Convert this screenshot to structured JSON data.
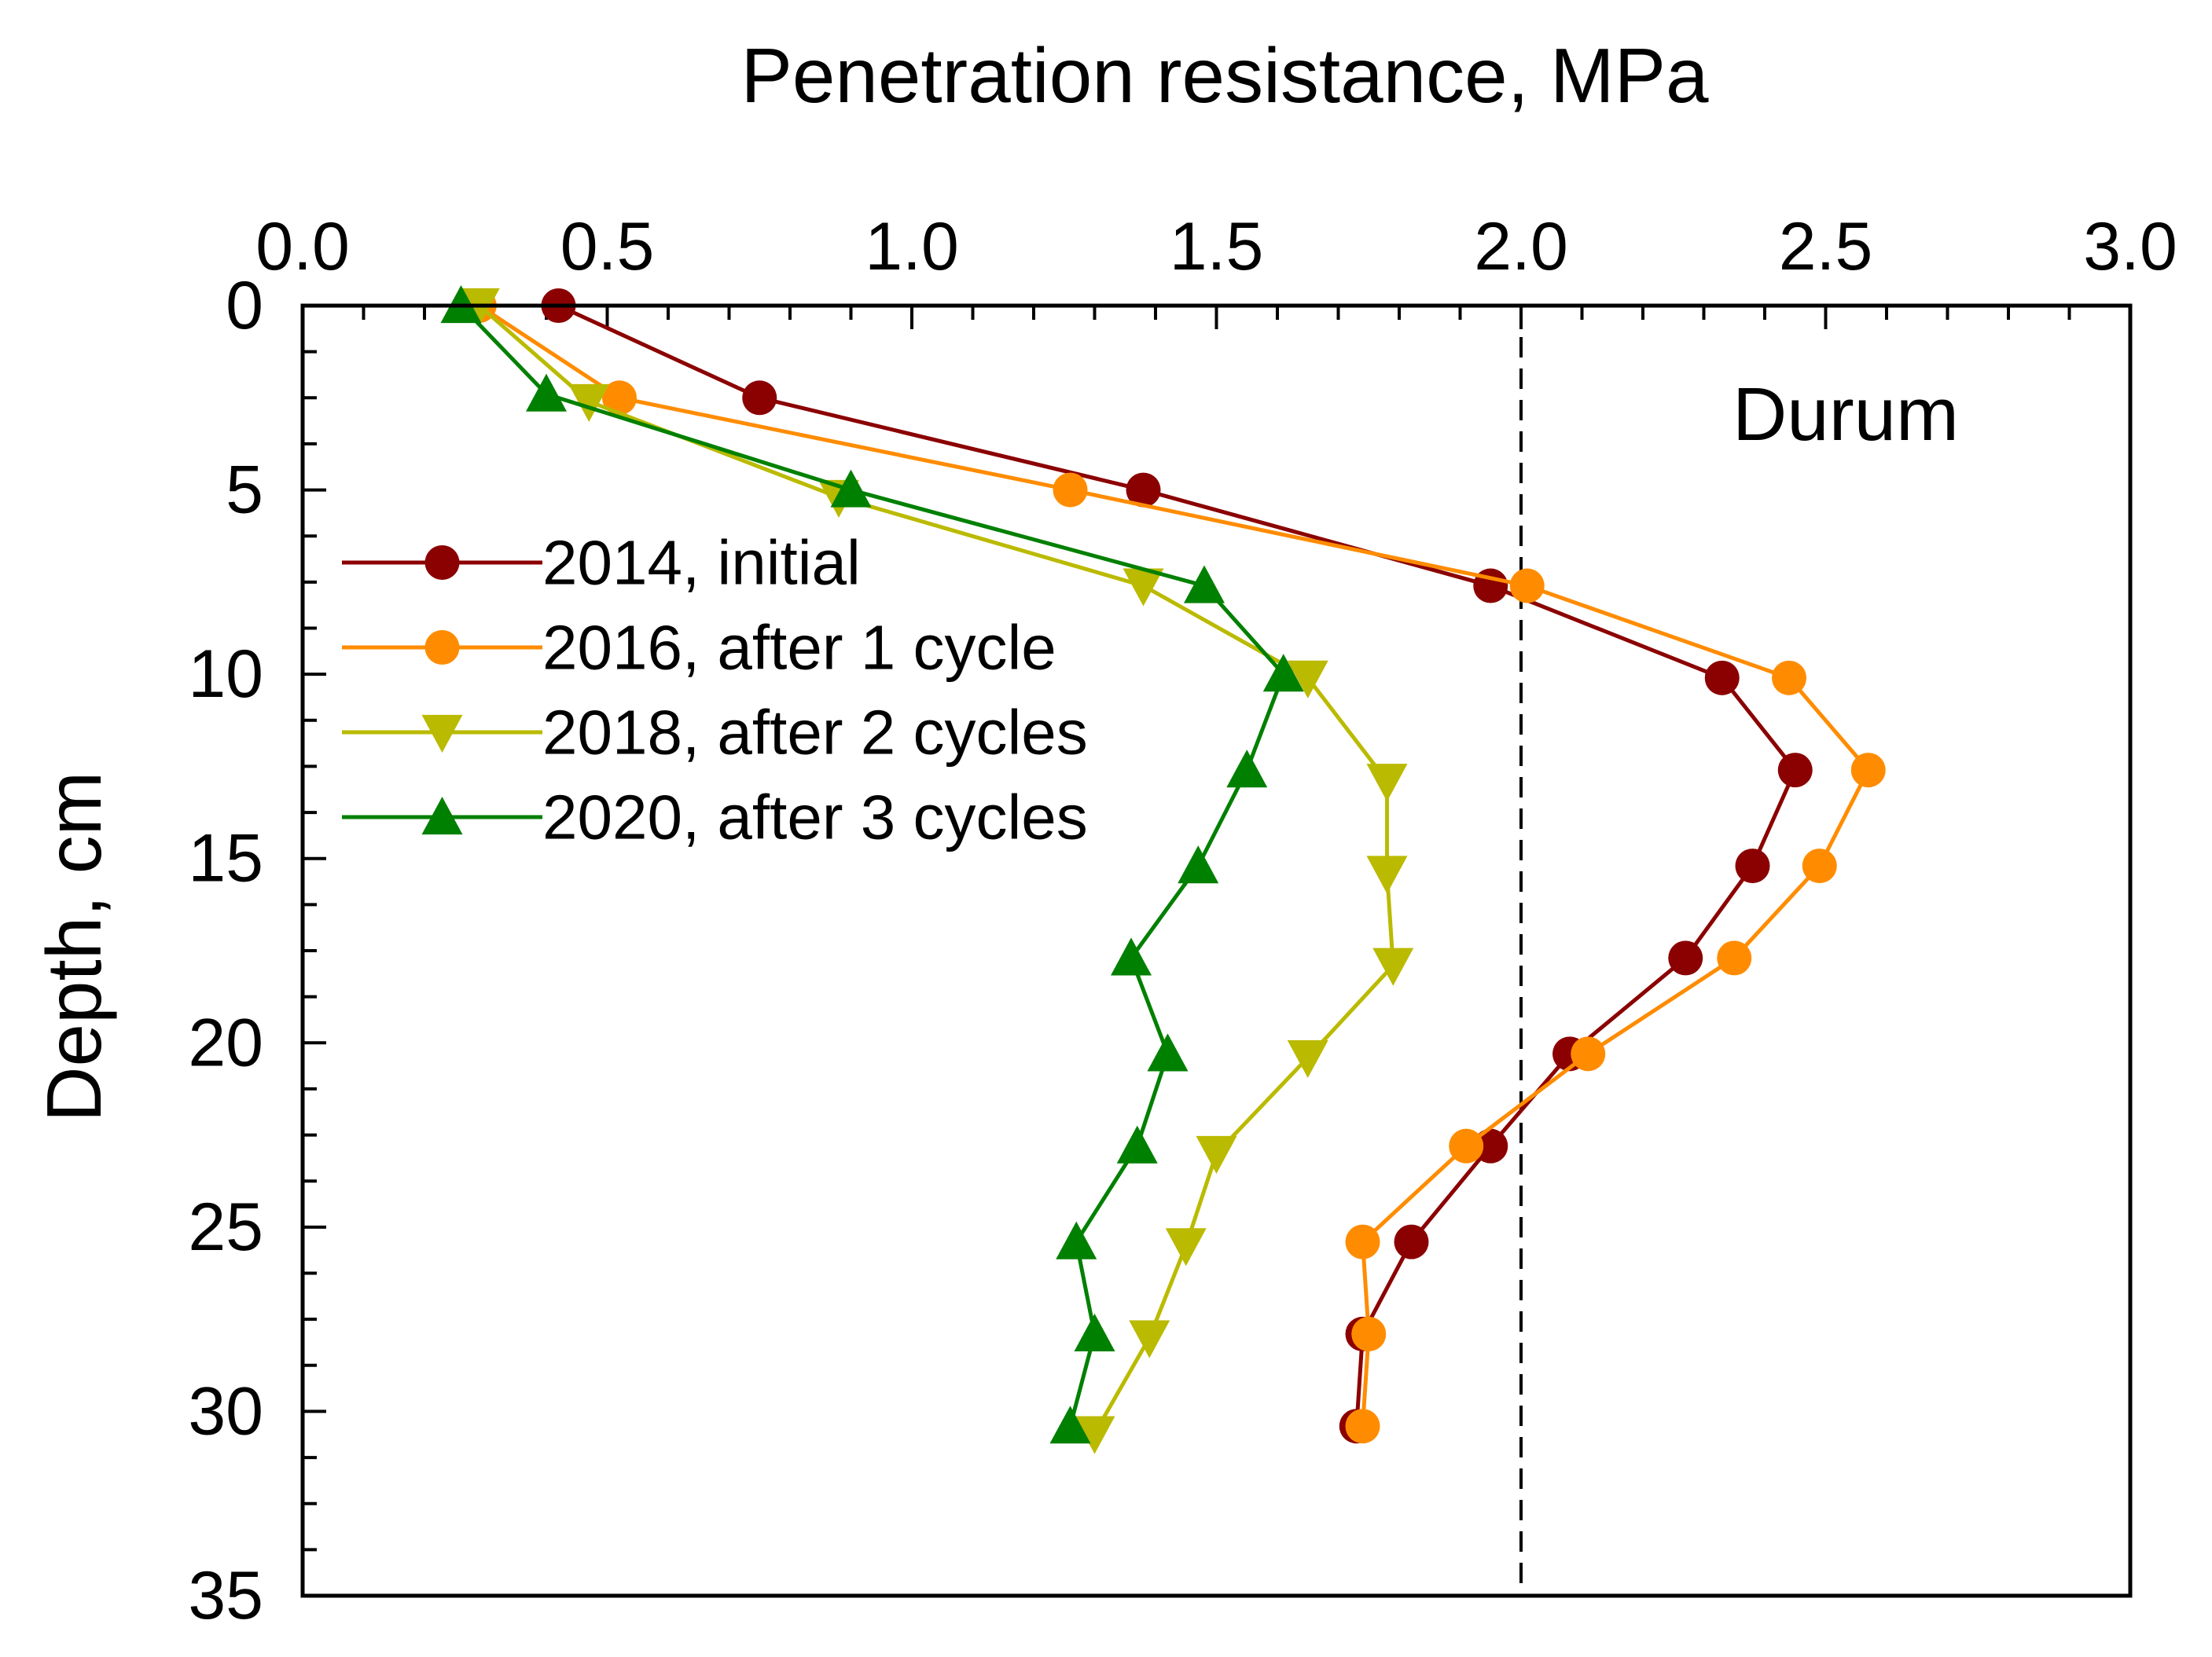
{
  "chart_data": {
    "type": "line",
    "title": "",
    "xlabel": "Penetration resistance, MPa",
    "ylabel": "Depth, cm",
    "xlim": [
      0,
      3
    ],
    "ylim": [
      0,
      35
    ],
    "y_inverted": true,
    "x_axis_position": "top",
    "x_ticks": [
      "0.0",
      "0.5",
      "1.0",
      "1.5",
      "2.0",
      "2.5",
      "3.0"
    ],
    "y_ticks": [
      "0",
      "5",
      "10",
      "15",
      "20",
      "25",
      "30",
      "35"
    ],
    "annotation": "Durum",
    "reference_line": {
      "x": 2.0,
      "style": "dashed"
    },
    "legend_position": "upper-left",
    "series": [
      {
        "name": "2014, initial",
        "color": "#8B0000",
        "marker": "circle",
        "points": [
          [
            0.42,
            0
          ],
          [
            0.75,
            2.5
          ],
          [
            1.38,
            5
          ],
          [
            1.95,
            7.6
          ],
          [
            2.33,
            10.1
          ],
          [
            2.45,
            12.6
          ],
          [
            2.38,
            15.2
          ],
          [
            2.27,
            17.7
          ],
          [
            2.08,
            20.3
          ],
          [
            1.95,
            22.8
          ],
          [
            1.82,
            25.4
          ],
          [
            1.74,
            27.9
          ],
          [
            1.73,
            30.4
          ]
        ]
      },
      {
        "name": "2016, after 1 cycle",
        "color": "#FF8C00",
        "marker": "circle",
        "points": [
          [
            0.29,
            0
          ],
          [
            0.52,
            2.5
          ],
          [
            1.26,
            5
          ],
          [
            2.01,
            7.6
          ],
          [
            2.44,
            10.1
          ],
          [
            2.57,
            12.6
          ],
          [
            2.49,
            15.2
          ],
          [
            2.35,
            17.7
          ],
          [
            2.11,
            20.3
          ],
          [
            1.91,
            22.8
          ],
          [
            1.74,
            25.4
          ],
          [
            1.75,
            27.9
          ],
          [
            1.74,
            30.4
          ]
        ]
      },
      {
        "name": "2018, after 2 cycles",
        "color": "#BABA00",
        "marker": "triangle-down",
        "points": [
          [
            0.29,
            0
          ],
          [
            0.47,
            2.6
          ],
          [
            0.88,
            5.2
          ],
          [
            1.38,
            7.6
          ],
          [
            1.65,
            10.1
          ],
          [
            1.78,
            12.9
          ],
          [
            1.78,
            15.4
          ],
          [
            1.79,
            17.9
          ],
          [
            1.65,
            20.4
          ],
          [
            1.5,
            23.0
          ],
          [
            1.45,
            25.5
          ],
          [
            1.39,
            28.0
          ],
          [
            1.3,
            30.6
          ]
        ]
      },
      {
        "name": "2020, after 3 cycles",
        "color": "#008000",
        "marker": "triangle-up",
        "points": [
          [
            0.26,
            0
          ],
          [
            0.4,
            2.4
          ],
          [
            0.9,
            5.0
          ],
          [
            1.48,
            7.6
          ],
          [
            1.61,
            10.0
          ],
          [
            1.55,
            12.6
          ],
          [
            1.47,
            15.2
          ],
          [
            1.36,
            17.7
          ],
          [
            1.42,
            20.3
          ],
          [
            1.37,
            22.8
          ],
          [
            1.27,
            25.4
          ],
          [
            1.3,
            27.9
          ],
          [
            1.26,
            30.4
          ]
        ]
      }
    ]
  }
}
